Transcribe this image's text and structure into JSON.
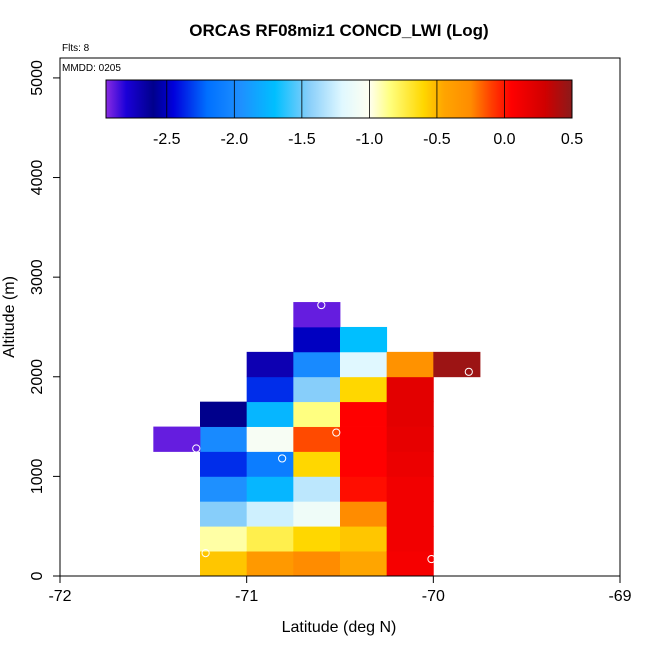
{
  "chart_data": {
    "type": "heatmap",
    "title": "ORCAS RF08miz1 CONCD_LWI (Log)",
    "annotations": {
      "flights": "Flts: 8",
      "date": "MMDD: 0205"
    },
    "xlabel": "Latitude (deg N)",
    "ylabel": "Altitude (m)",
    "xlim": [
      -72,
      -69
    ],
    "ylim": [
      0,
      5200
    ],
    "x_ticks": [
      "-72",
      "-71",
      "-70",
      "-69"
    ],
    "y_ticks": [
      "0",
      "1000",
      "2000",
      "3000",
      "4000",
      "5000"
    ],
    "colorbar": {
      "range": [
        -2.95,
        0.5
      ],
      "ticks": [
        "-2.5",
        "-2.0",
        "-1.5",
        "-1.0",
        "-0.5",
        "0.0",
        "0.5"
      ],
      "stops": [
        [
          -2.95,
          "#8a2be2"
        ],
        [
          -2.8,
          "#1a00d8"
        ],
        [
          -2.6,
          "#00008c"
        ],
        [
          -2.45,
          "#0000dc"
        ],
        [
          -2.2,
          "#0070ff"
        ],
        [
          -1.95,
          "#1e90ff"
        ],
        [
          -1.7,
          "#00bfff"
        ],
        [
          -1.45,
          "#87cefa"
        ],
        [
          -1.2,
          "#e0f8ff"
        ],
        [
          -1.0,
          "#fffff0"
        ],
        [
          -0.85,
          "#ffff80"
        ],
        [
          -0.6,
          "#ffd700"
        ],
        [
          -0.45,
          "#ffa500"
        ],
        [
          -0.25,
          "#ff8c00"
        ],
        [
          -0.1,
          "#ff4000"
        ],
        [
          0.05,
          "#ff0000"
        ],
        [
          0.3,
          "#d00000"
        ],
        [
          0.5,
          "#8b1a1a"
        ]
      ]
    },
    "cell_size": {
      "lat": 0.25,
      "alt": 250
    },
    "cells": [
      {
        "lat": -71.25,
        "alt": 0,
        "value": -0.55
      },
      {
        "lat": -71.25,
        "alt": 250,
        "value": -0.9
      },
      {
        "lat": -71.25,
        "alt": 500,
        "value": -1.45
      },
      {
        "lat": -71.25,
        "alt": 750,
        "value": -1.95
      },
      {
        "lat": -71.25,
        "alt": 1000,
        "value": -2.35
      },
      {
        "lat": -71.25,
        "alt": 1250,
        "value": -2.0
      },
      {
        "lat": -71.25,
        "alt": 1500,
        "value": -2.6
      },
      {
        "lat": -71.5,
        "alt": 1250,
        "value": -2.9
      },
      {
        "lat": -71.0,
        "alt": 0,
        "value": -0.35
      },
      {
        "lat": -71.0,
        "alt": 250,
        "value": -0.75
      },
      {
        "lat": -71.0,
        "alt": 500,
        "value": -1.25
      },
      {
        "lat": -71.0,
        "alt": 750,
        "value": -1.75
      },
      {
        "lat": -71.0,
        "alt": 1000,
        "value": -2.1
      },
      {
        "lat": -71.0,
        "alt": 1250,
        "value": -1.05
      },
      {
        "lat": -71.0,
        "alt": 1500,
        "value": -1.75
      },
      {
        "lat": -71.0,
        "alt": 1750,
        "value": -2.35
      },
      {
        "lat": -71.0,
        "alt": 2000,
        "value": -2.7
      },
      {
        "lat": -70.75,
        "alt": 0,
        "value": -0.25
      },
      {
        "lat": -70.75,
        "alt": 250,
        "value": -0.6
      },
      {
        "lat": -70.75,
        "alt": 500,
        "value": -1.1
      },
      {
        "lat": -70.75,
        "alt": 750,
        "value": -1.3
      },
      {
        "lat": -70.75,
        "alt": 1000,
        "value": -0.6
      },
      {
        "lat": -70.75,
        "alt": 1250,
        "value": -0.12
      },
      {
        "lat": -70.75,
        "alt": 1500,
        "value": -0.85
      },
      {
        "lat": -70.75,
        "alt": 1750,
        "value": -1.45
      },
      {
        "lat": -70.75,
        "alt": 2000,
        "value": -2.0
      },
      {
        "lat": -70.75,
        "alt": 2250,
        "value": -2.5
      },
      {
        "lat": -70.75,
        "alt": 2500,
        "value": -2.9
      },
      {
        "lat": -70.5,
        "alt": 0,
        "value": -0.45
      },
      {
        "lat": -70.5,
        "alt": 250,
        "value": -0.55
      },
      {
        "lat": -70.5,
        "alt": 500,
        "value": -0.25
      },
      {
        "lat": -70.5,
        "alt": 750,
        "value": 0.02
      },
      {
        "lat": -70.5,
        "alt": 1000,
        "value": 0.05
      },
      {
        "lat": -70.5,
        "alt": 1250,
        "value": 0.05
      },
      {
        "lat": -70.5,
        "alt": 1500,
        "value": 0.05
      },
      {
        "lat": -70.5,
        "alt": 1750,
        "value": -0.6
      },
      {
        "lat": -70.5,
        "alt": 2000,
        "value": -1.2
      },
      {
        "lat": -70.5,
        "alt": 2250,
        "value": -1.7
      },
      {
        "lat": -70.25,
        "alt": 0,
        "value": 0.1
      },
      {
        "lat": -70.25,
        "alt": 250,
        "value": 0.12
      },
      {
        "lat": -70.25,
        "alt": 500,
        "value": 0.12
      },
      {
        "lat": -70.25,
        "alt": 750,
        "value": 0.12
      },
      {
        "lat": -70.25,
        "alt": 1000,
        "value": 0.15
      },
      {
        "lat": -70.25,
        "alt": 1250,
        "value": 0.18
      },
      {
        "lat": -70.25,
        "alt": 1500,
        "value": 0.2
      },
      {
        "lat": -70.25,
        "alt": 1750,
        "value": 0.2
      },
      {
        "lat": -70.25,
        "alt": 2000,
        "value": -0.3
      },
      {
        "lat": -70.0,
        "alt": 2000,
        "value": 0.45
      }
    ],
    "markers": [
      {
        "lat": -71.22,
        "alt": 230
      },
      {
        "lat": -71.27,
        "alt": 1280
      },
      {
        "lat": -70.81,
        "alt": 1180
      },
      {
        "lat": -70.52,
        "alt": 1440
      },
      {
        "lat": -70.6,
        "alt": 2720
      },
      {
        "lat": -70.01,
        "alt": 170
      },
      {
        "lat": -69.81,
        "alt": 2050
      }
    ]
  }
}
